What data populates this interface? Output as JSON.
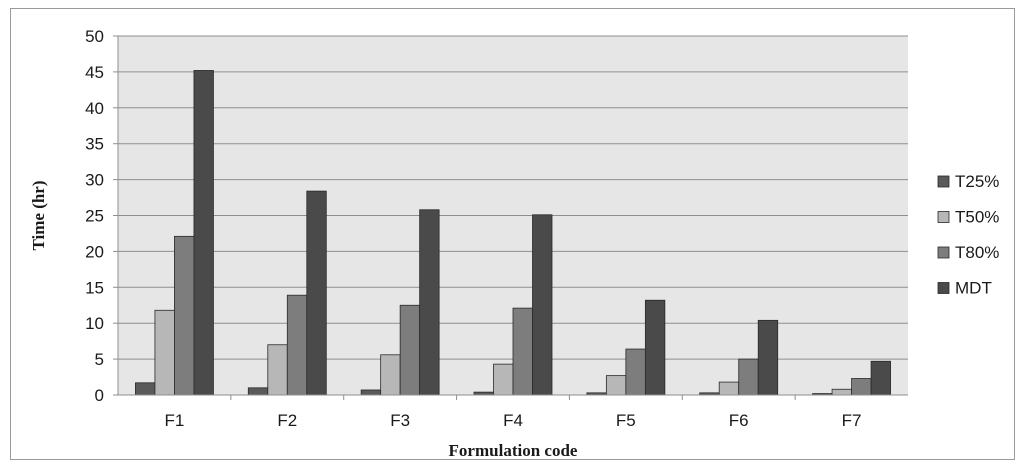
{
  "chart_data": {
    "type": "bar",
    "title": "",
    "xlabel": "Formulation code",
    "ylabel": "Time (hr)",
    "ylim": [
      0,
      50
    ],
    "yticks": [
      "0",
      "5",
      "10",
      "15",
      "20",
      "25",
      "30",
      "35",
      "40",
      "45",
      "50"
    ],
    "grid": true,
    "legend_position": "right",
    "categories": [
      "F1",
      "F2",
      "F3",
      "F4",
      "F5",
      "F6",
      "F7"
    ],
    "series": [
      {
        "name": "T25%",
        "color": "#5a5a5a",
        "values": [
          1.7,
          1.0,
          0.7,
          0.4,
          0.3,
          0.3,
          0.2
        ]
      },
      {
        "name": "T50%",
        "color": "#b7b7b7",
        "values": [
          11.8,
          7.0,
          5.6,
          4.3,
          2.7,
          1.8,
          0.8
        ]
      },
      {
        "name": "T80%",
        "color": "#7d7d7d",
        "values": [
          22.1,
          13.9,
          12.5,
          12.1,
          6.4,
          5.0,
          2.3
        ]
      },
      {
        "name": "MDT",
        "color": "#4a4a4a",
        "values": [
          45.2,
          28.4,
          25.8,
          25.1,
          13.2,
          10.4,
          4.7
        ]
      }
    ]
  }
}
